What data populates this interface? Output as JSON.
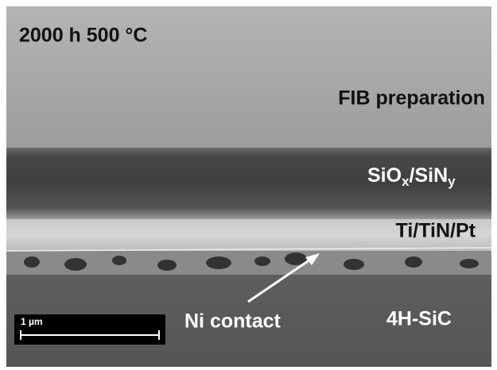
{
  "labels": {
    "condition": "2000 h 500 °C",
    "preparation": "FIB preparation",
    "passivation": {
      "parts": [
        "SiO",
        "x",
        "/SiN",
        "y"
      ]
    },
    "metal": "Ti/TiN/Pt",
    "contact": "Ni contact",
    "substrate": "4H-SiC",
    "scale_bar": "1 µm"
  }
}
